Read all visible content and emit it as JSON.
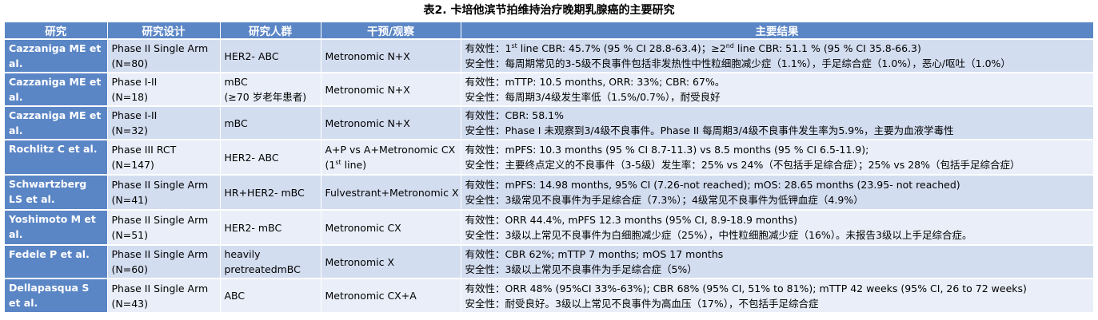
{
  "caption": "表2. 卡培他滨节拍维持治疗晚期乳腺癌的主要研究",
  "headers": [
    "研究",
    "研究设计",
    "研究人群",
    "干预/观察",
    "主要结果"
  ],
  "rows": [
    {
      "study": "Cazzaniga ME et al.",
      "design": [
        "Phase II Single Arm",
        "(N=80)"
      ],
      "population": [
        "HER2- ABC"
      ],
      "intervention": [
        "Metronomic N+X"
      ],
      "results": [
        {
          "pre": "有效性：1",
          "sup": "st",
          "post": " line CBR: 45.7% (95 % CI 28.8-63.4)；≥2",
          "sup2": "nd",
          "post2": " line CBR: 51.1 % (95 % CI 35.8-66.3)"
        },
        {
          "pre": "安全性：每周期常见的3-5级不良事件包括非发热性中性粒细胞减少症（1.1%），手足综合症（1.0%），恶心/呕吐（1.0%）"
        }
      ]
    },
    {
      "study": "Cazzaniga ME et al.",
      "design": [
        "Phase I-II",
        "(N=18)"
      ],
      "population": [
        "mBC",
        "(≥70 岁老年患者)"
      ],
      "intervention": [
        "Metronomic N+X"
      ],
      "results": [
        {
          "pre": "有效性：mTTP: 10.5 months, ORR: 33%; CBR: 67%。"
        },
        {
          "pre": "安全性：每周期3/4级发生率低（1.5%/0.7%），耐受良好"
        }
      ]
    },
    {
      "study": "Cazzaniga ME et al.",
      "design": [
        "Phase I-II",
        "(N=32)"
      ],
      "population": [
        "mBC"
      ],
      "intervention": [
        "Metronomic N+X"
      ],
      "results": [
        {
          "pre": "有效性：CBR: 58.1%"
        },
        {
          "pre": "安全性：Phase I 未观察到3/4级不良事件。Phase II 每周期3/4级不良事件发生率为5.9%，主要为血液学毒性"
        }
      ]
    },
    {
      "study": "Rochlitz C et al.",
      "design": [
        "Phase III RCT",
        "(N=147)"
      ],
      "population": [
        "HER2- ABC"
      ],
      "intervention": [
        "A+P vs A+Metronomic CX",
        "(1st line)"
      ],
      "results": [
        {
          "pre": "有效性：mPFS: 10.3 months (95 % CI 8.7-11.3) vs 8.5 months (95 % CI 6.5-11.9);"
        },
        {
          "pre": "安全性：主要终点定义的不良事件（3-5级）发生率：25% vs 24%（不包括手足综合症）；25% vs 28%（包括手足综合症）"
        }
      ]
    },
    {
      "study": "Schwartzberg LS et al.",
      "design": [
        "Phase II Single Arm",
        "(N=41)"
      ],
      "population": [
        "HR+HER2- mBC"
      ],
      "intervention": [
        "Fulvestrant+Metronomic X"
      ],
      "results": [
        {
          "pre": "有效性：mPFS: 14.98 months, 95% CI (7.26-not reached); mOS: 28.65 months (23.95- not reached)"
        },
        {
          "pre": "安全性：3级常见不良事件为手足综合症（7.3%）；4级常见不良事件为低钾血症（4.9%）"
        }
      ]
    },
    {
      "study": "Yoshimoto M et al.",
      "design": [
        "Phase II Single Arm",
        "(N=51)"
      ],
      "population": [
        "HER2- mBC"
      ],
      "intervention": [
        "Metronomic CX"
      ],
      "results": [
        {
          "pre": "有效性：ORR 44.4%, mPFS 12.3 months (95% CI, 8.9-18.9 months)"
        },
        {
          "pre": "安全性：3级以上常见不良事件为白细胞减少症（25%），中性粒细胞减少症（16%）。未报告3级以上手足综合症。"
        }
      ]
    },
    {
      "study": "Fedele P et al.",
      "design": [
        "Phase II Single Arm",
        "(N=60)"
      ],
      "population": [
        "heavily",
        "pretreatedmBC"
      ],
      "intervention": [
        "Metronomic X"
      ],
      "results": [
        {
          "pre": "有效性：CBR 62%; mTTP 7 months; mOS 17 months"
        },
        {
          "pre": "安全性：3级以上常见不良事件为手足综合症（5%）"
        }
      ]
    },
    {
      "study": "Dellapasqua S et al.",
      "design": [
        "Phase II Single Arm",
        "(N=43)"
      ],
      "population": [
        "ABC"
      ],
      "intervention": [
        "Metronomic CX+A"
      ],
      "results": [
        {
          "pre": "有效性：ORR 48% (95%CI 33%-63%); CBR 68% (95% CI, 51% to 81%); mTTP 42 weeks (95% CI, 26 to 72 weeks)"
        },
        {
          "pre": "安全性：耐受良好。3级以上常见不良事件为高血压（17%），不包括手足综合症"
        }
      ]
    }
  ]
}
